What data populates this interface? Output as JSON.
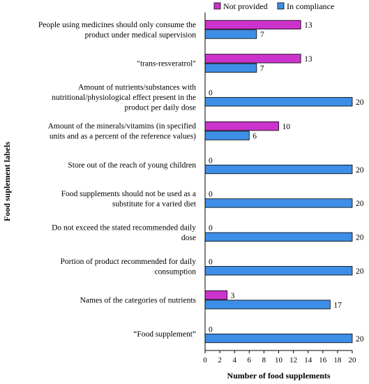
{
  "chart_data": {
    "type": "bar",
    "orientation": "horizontal",
    "xlabel": "Number of food supplements",
    "ylabel": "Food suplement labels",
    "xlim": [
      0,
      20
    ],
    "xticks": [
      0,
      2,
      4,
      6,
      8,
      10,
      12,
      14,
      16,
      18,
      20
    ],
    "legend_position": "top-right",
    "grid": false,
    "categories": [
      [
        "People using medicines should only consume the",
        "product under medical supervision"
      ],
      [
        "\"trans-resveratrol\""
      ],
      [
        "Amount of nutrients/substances with",
        "nutritional/physiological effect present in the",
        "product per daily dose"
      ],
      [
        "Amount of the minerals/vitamins (in specified",
        "units and as a percent of the reference values)"
      ],
      [
        "Store out of the reach of young children"
      ],
      [
        "Food supplements should not be used as a",
        "substitute for a varied diet"
      ],
      [
        "Do not exceed the stated recommended daily",
        "dose"
      ],
      [
        "Portion of product recommended for daily",
        "consumption"
      ],
      [
        "Names of the categories of nutrients"
      ],
      [
        "“Food supplement”"
      ]
    ],
    "series": [
      {
        "name": "Not provided",
        "color": "#CC33CC",
        "values": [
          13,
          13,
          0,
          10,
          0,
          0,
          0,
          0,
          3,
          0
        ]
      },
      {
        "name": "In compliance",
        "color": "#3D8EE6",
        "values": [
          7,
          7,
          20,
          6,
          20,
          20,
          20,
          20,
          17,
          20
        ]
      }
    ]
  }
}
